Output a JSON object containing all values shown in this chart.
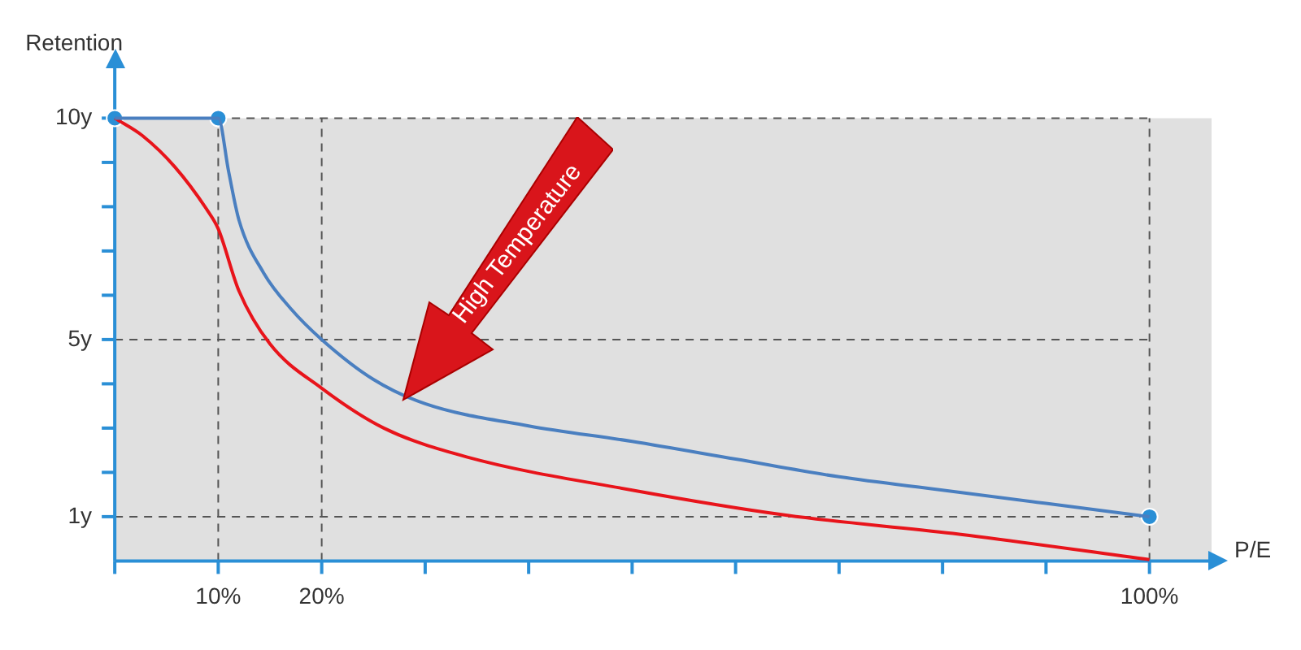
{
  "chart_data": {
    "type": "line",
    "xlabel": "P/E",
    "ylabel": "Retention",
    "xlim": [
      0,
      106
    ],
    "ylim": [
      0,
      11.2
    ],
    "bands": [
      {
        "axis": "y",
        "from": 0,
        "to": 10,
        "color": "#e0e0e0"
      }
    ],
    "xticks": [
      {
        "value": 0,
        "label": null
      },
      {
        "value": 10,
        "label": "10%"
      },
      {
        "value": 20,
        "label": "20%"
      },
      {
        "value": 30,
        "label": null
      },
      {
        "value": 40,
        "label": null
      },
      {
        "value": 50,
        "label": null
      },
      {
        "value": 60,
        "label": null
      },
      {
        "value": 70,
        "label": null
      },
      {
        "value": 80,
        "label": null
      },
      {
        "value": 90,
        "label": null
      },
      {
        "value": 100,
        "label": "100%"
      }
    ],
    "yticks": [
      {
        "value": 1,
        "label": "1y"
      },
      {
        "value": 2,
        "label": null
      },
      {
        "value": 3,
        "label": null
      },
      {
        "value": 4,
        "label": null
      },
      {
        "value": 5,
        "label": "5y"
      },
      {
        "value": 6,
        "label": null
      },
      {
        "value": 7,
        "label": null
      },
      {
        "value": 8,
        "label": null
      },
      {
        "value": 9,
        "label": null
      },
      {
        "value": 10,
        "label": "10y"
      }
    ],
    "grid": false,
    "legend": false,
    "line_style": "solid",
    "series": [
      {
        "color": "#4a7fc0",
        "marker": "none",
        "x": [
          0,
          10,
          11,
          12,
          14.4,
          17,
          20,
          25,
          30,
          40,
          50,
          60,
          70,
          80,
          90,
          100
        ],
        "values": [
          10,
          10,
          8.8,
          7.7,
          6.5,
          5.7,
          5,
          4.1,
          3.55,
          3.05,
          2.7,
          2.3,
          1.9,
          1.6,
          1.3,
          1
        ]
      },
      {
        "color": "#e8141b",
        "marker": "none",
        "x": [
          0,
          2.7,
          5.8,
          9,
          10,
          12,
          15,
          20,
          26,
          34,
          50,
          65,
          81,
          100
        ],
        "values": [
          10,
          9.6,
          8.9,
          7.9,
          7.5,
          6.1,
          4.9,
          3.9,
          3,
          2.35,
          1.6,
          1.03,
          0.62,
          0.03
        ]
      },
      {
        "type": "scatter",
        "color": "#2a8fd6",
        "marker": "circle",
        "x": [
          0,
          10,
          100
        ],
        "values": [
          10,
          10,
          1
        ]
      }
    ],
    "ref_lines": [
      {
        "axis": "y",
        "value": 10,
        "color": "#555555",
        "line_style": "dashed"
      },
      {
        "axis": "y",
        "value": 5,
        "color": "#555555",
        "line_style": "dashed"
      },
      {
        "axis": "y",
        "value": 1,
        "color": "#555555",
        "line_style": "dashed"
      },
      {
        "axis": "x",
        "value": 10,
        "color": "#555555",
        "line_style": "dashed"
      },
      {
        "axis": "x",
        "value": 20,
        "color": "#555555",
        "line_style": "dashed"
      },
      {
        "axis": "x",
        "value": 100,
        "color": "#555555",
        "line_style": "dashed"
      }
    ],
    "annotations": [
      "High Temperature"
    ]
  }
}
